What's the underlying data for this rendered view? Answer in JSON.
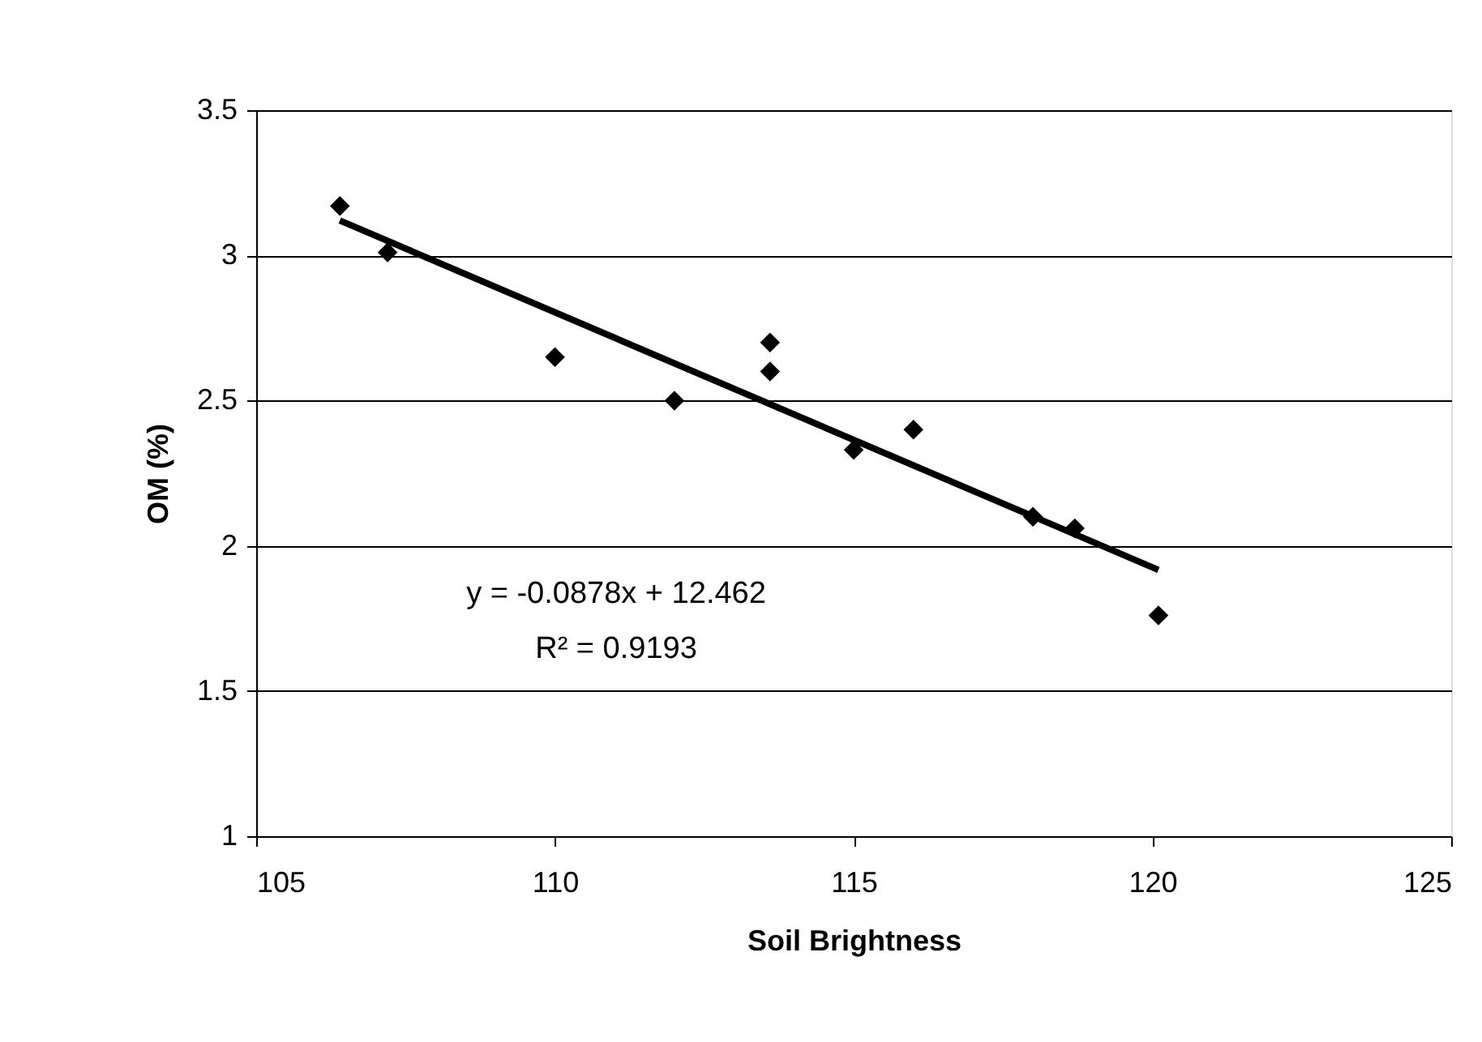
{
  "chart_data": {
    "type": "scatter",
    "xlabel": "Soil Brightness",
    "ylabel": "OM (%)",
    "xlim": [
      105,
      125
    ],
    "xticks": [
      105,
      110,
      115,
      120,
      125
    ],
    "ylim": [
      1,
      3.5
    ],
    "yticks": [
      1,
      1.5,
      2,
      2.5,
      3,
      3.5
    ],
    "grid": "y",
    "x": [
      106.4,
      107.2,
      110,
      112,
      113.6,
      113.6,
      115,
      116,
      118,
      118.7,
      120.1
    ],
    "series": [
      {
        "marker": "diamond",
        "color": "#000000",
        "values": [
          3.17,
          3.01,
          2.65,
          2.5,
          2.7,
          2.6,
          2.33,
          2.4,
          2.1,
          2.06,
          1.76
        ]
      },
      {
        "type": "line",
        "color": "#000000",
        "line_style": "solid",
        "x": [
          106.4,
          120.1
        ],
        "values": [
          3.12,
          1.917
        ]
      }
    ],
    "annotations": [
      "y = -0.0878x + 12.462",
      "R² = 0.9193"
    ]
  }
}
